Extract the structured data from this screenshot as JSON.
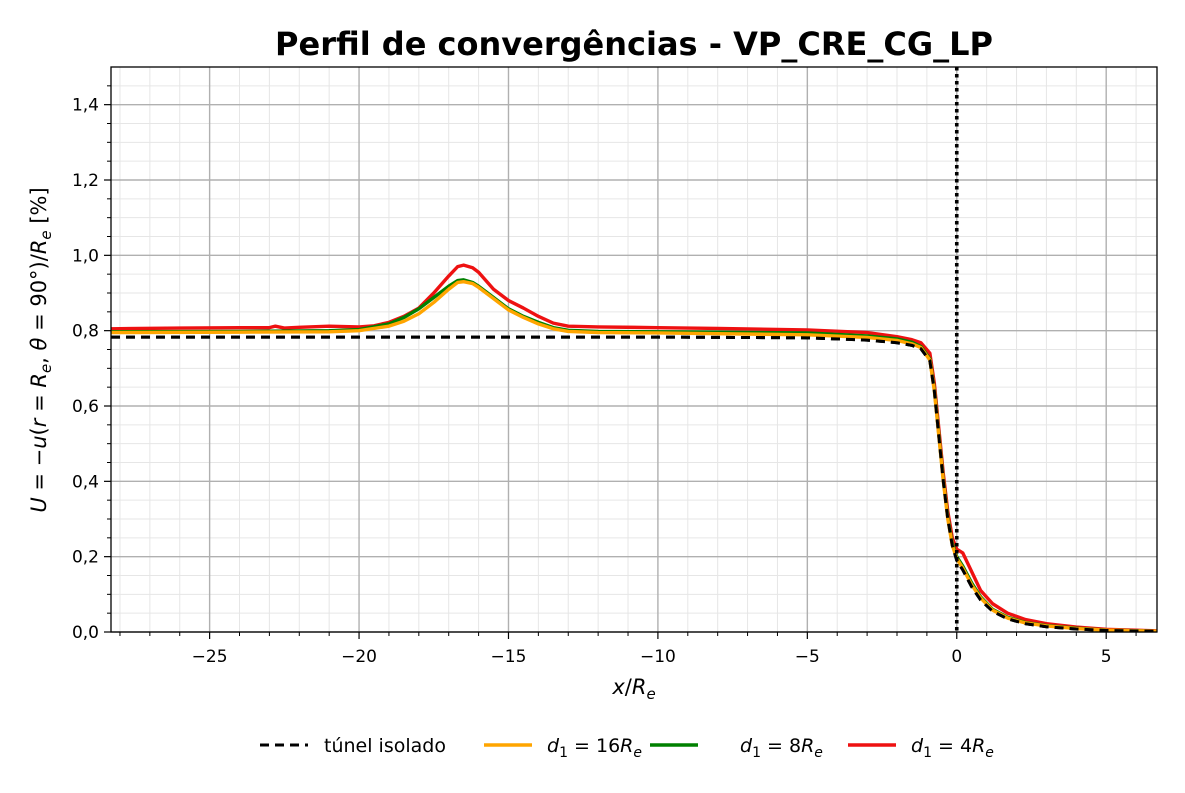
{
  "chart_data": {
    "type": "line",
    "title": "Perfil de convergências - VP_CRE_CG_LP",
    "xlabel": "x/Re",
    "ylabel": "U = −u(r = Re, θ = 90°)/Re [%]",
    "xlim": [
      -28.3,
      6.7
    ],
    "ylim": [
      0,
      1.5
    ],
    "x_ticks": [
      -25,
      -20,
      -15,
      -10,
      -5,
      0,
      5
    ],
    "x_tick_labels": [
      "−25",
      "−20",
      "−15",
      "−10",
      "−5",
      "0",
      "5"
    ],
    "y_ticks": [
      0,
      0.2,
      0.4,
      0.6,
      0.8,
      1.0,
      1.2,
      1.4
    ],
    "y_tick_labels": [
      "0,0",
      "0,2",
      "0,4",
      "0,6",
      "0,8",
      "1,0",
      "1,2",
      "1,4"
    ],
    "grid": "major and minor",
    "vertical_reference_line": {
      "x": 0,
      "style": "dotted",
      "color": "#000000"
    },
    "legend_position": "below plot, horizontal",
    "series": [
      {
        "name": "túnel isolado",
        "color": "#000000",
        "style": "dashed",
        "x": [
          -28.3,
          -20,
          -15,
          -10,
          -5,
          -3,
          -2,
          -1.5,
          -1.2,
          -0.9,
          -0.75,
          -0.6,
          -0.45,
          -0.3,
          -0.15,
          0,
          0.2,
          0.5,
          0.8,
          1.2,
          1.7,
          2.3,
          3,
          4,
          5,
          6.7
        ],
        "y": [
          0.783,
          0.783,
          0.783,
          0.783,
          0.781,
          0.775,
          0.768,
          0.761,
          0.752,
          0.72,
          0.64,
          0.52,
          0.4,
          0.3,
          0.23,
          0.19,
          0.165,
          0.12,
          0.085,
          0.055,
          0.035,
          0.022,
          0.014,
          0.008,
          0.004,
          0.002
        ]
      },
      {
        "name": "d1 = 16Re",
        "color": "#ffa500",
        "style": "solid",
        "x": [
          -28.3,
          -24,
          -21,
          -20,
          -19,
          -18.5,
          -18,
          -17.5,
          -17,
          -16.7,
          -16.5,
          -16.2,
          -16,
          -15.5,
          -15,
          -14.5,
          -14,
          -13.5,
          -13,
          -12,
          -10,
          -8,
          -5,
          -3,
          -2,
          -1.5,
          -1.2,
          -0.9,
          -0.75,
          -0.6,
          -0.45,
          -0.3,
          -0.15,
          0,
          0.2,
          0.5,
          0.8,
          1.2,
          1.7,
          2.3,
          3,
          4,
          5,
          6.7
        ],
        "y": [
          0.795,
          0.796,
          0.797,
          0.8,
          0.812,
          0.825,
          0.845,
          0.875,
          0.91,
          0.928,
          0.93,
          0.925,
          0.915,
          0.885,
          0.855,
          0.835,
          0.818,
          0.805,
          0.798,
          0.795,
          0.794,
          0.792,
          0.789,
          0.782,
          0.774,
          0.765,
          0.755,
          0.722,
          0.64,
          0.52,
          0.4,
          0.3,
          0.23,
          0.195,
          0.17,
          0.125,
          0.09,
          0.058,
          0.037,
          0.024,
          0.016,
          0.009,
          0.005,
          0.002
        ]
      },
      {
        "name": "d1 = 8Re",
        "color": "#008000",
        "style": "solid",
        "x": [
          -28.3,
          -24,
          -21,
          -20,
          -19,
          -18.5,
          -18,
          -17.5,
          -17,
          -16.7,
          -16.5,
          -16.2,
          -16,
          -15.5,
          -15,
          -14.5,
          -14,
          -13.5,
          -13,
          -12,
          -10,
          -8,
          -5,
          -3,
          -2,
          -1.5,
          -1.2,
          -0.9,
          -0.75,
          -0.6,
          -0.45,
          -0.3,
          -0.15,
          0,
          0.2,
          0.5,
          0.8,
          1.2,
          1.7,
          2.3,
          3,
          4,
          5,
          6.7
        ],
        "y": [
          0.797,
          0.798,
          0.8,
          0.803,
          0.818,
          0.835,
          0.858,
          0.888,
          0.918,
          0.933,
          0.935,
          0.928,
          0.918,
          0.888,
          0.858,
          0.838,
          0.822,
          0.808,
          0.801,
          0.798,
          0.797,
          0.796,
          0.794,
          0.786,
          0.778,
          0.769,
          0.758,
          0.725,
          0.645,
          0.525,
          0.405,
          0.305,
          0.235,
          0.2,
          0.175,
          0.13,
          0.093,
          0.06,
          0.039,
          0.025,
          0.017,
          0.01,
          0.005,
          0.002
        ]
      },
      {
        "name": "d1 = 4Re",
        "color": "#ee1111",
        "style": "solid",
        "x": [
          -28.3,
          -26,
          -24,
          -23,
          -22.8,
          -22.5,
          -22,
          -21,
          -20,
          -19.5,
          -19,
          -18.5,
          -18,
          -17.5,
          -17,
          -16.7,
          -16.5,
          -16.2,
          -16,
          -15.5,
          -15,
          -14.5,
          -14,
          -13.5,
          -13,
          -12,
          -10,
          -8,
          -5,
          -3,
          -2,
          -1.5,
          -1.2,
          -0.9,
          -0.75,
          -0.6,
          -0.45,
          -0.3,
          -0.15,
          0,
          0.2,
          0.5,
          0.8,
          1.2,
          1.7,
          2.3,
          3,
          4,
          5,
          6.7
        ],
        "y": [
          0.805,
          0.807,
          0.808,
          0.808,
          0.812,
          0.807,
          0.809,
          0.812,
          0.81,
          0.813,
          0.822,
          0.838,
          0.86,
          0.9,
          0.945,
          0.97,
          0.974,
          0.967,
          0.955,
          0.91,
          0.88,
          0.86,
          0.838,
          0.82,
          0.812,
          0.81,
          0.808,
          0.806,
          0.802,
          0.795,
          0.784,
          0.776,
          0.768,
          0.74,
          0.66,
          0.54,
          0.42,
          0.32,
          0.25,
          0.22,
          0.21,
          0.16,
          0.11,
          0.075,
          0.05,
          0.033,
          0.022,
          0.013,
          0.007,
          0.003
        ]
      }
    ]
  },
  "legend": [
    {
      "label_main": "túnel isolado",
      "label_sub": "",
      "label_tail": "",
      "color": "#000000",
      "style": "dashed"
    },
    {
      "label_main": "d",
      "label_sub": "1",
      "label_tail": " = 16R",
      "label_tail_sub": "e",
      "color": "#ffa500",
      "style": "solid"
    },
    {
      "label_main": "d",
      "label_sub": "1",
      "label_tail": " = 8R",
      "label_tail_sub": "e",
      "color": "#008000",
      "style": "solid"
    },
    {
      "label_main": "d",
      "label_sub": "1",
      "label_tail": " = 4R",
      "label_tail_sub": "e",
      "color": "#ee1111",
      "style": "solid"
    }
  ]
}
